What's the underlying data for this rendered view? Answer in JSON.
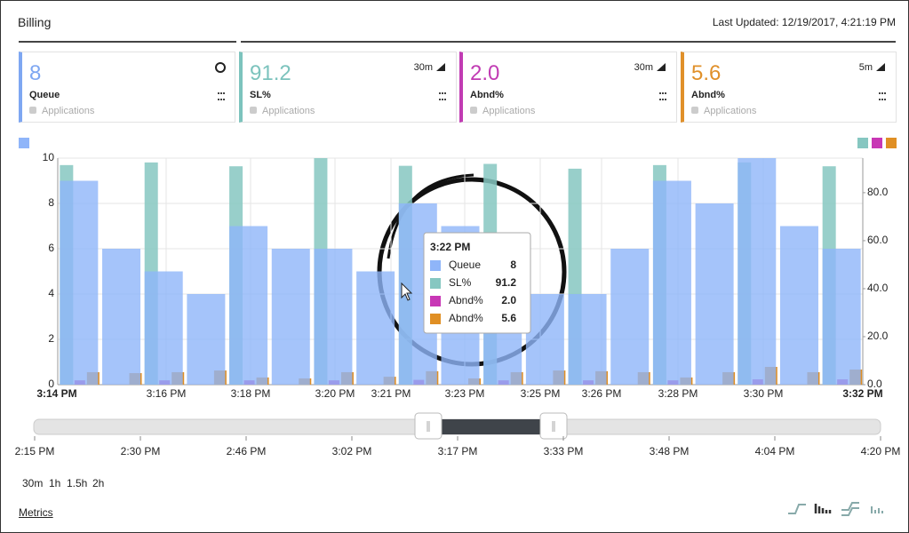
{
  "header": {
    "title": "Billing",
    "last_updated": "Last Updated: 12/19/2017, 4:21:19 PM"
  },
  "cards": [
    {
      "value": "8",
      "label": "Queue",
      "sub": "Applications",
      "period": null,
      "color": "#7ea7f2"
    },
    {
      "value": "91.2",
      "label": "SL%",
      "sub": "Applications",
      "period": "30m",
      "color": "#7cc3bd"
    },
    {
      "value": "2.0",
      "label": "Abnd%",
      "sub": "Applications",
      "period": "30m",
      "color": "#c13bb3"
    },
    {
      "value": "5.6",
      "label": "Abnd%",
      "sub": "Applications",
      "period": "5m",
      "color": "#e0902a"
    }
  ],
  "chart_data": {
    "type": "bar",
    "categories": [
      null,
      null,
      null,
      null,
      null,
      null,
      null,
      null,
      null,
      null,
      null,
      null,
      null,
      null,
      null,
      null,
      null,
      null,
      null
    ],
    "xtick_labels": [
      "3:14 PM",
      "3:16 PM",
      "3:18 PM",
      "3:20 PM",
      "3:21 PM",
      "3:23 PM",
      "3:25 PM",
      "3:26 PM",
      "3:28 PM",
      "3:30 PM",
      "3:32 PM"
    ],
    "series": [
      {
        "name": "Queue",
        "color": "#8fb5f9",
        "values": [
          9,
          6,
          5,
          4,
          7,
          6,
          6,
          5,
          8,
          7,
          6,
          4,
          4,
          6,
          9,
          8,
          10,
          7,
          6
        ]
      },
      {
        "name": "SL%",
        "color": "#86c7c1",
        "axis": "y2",
        "values": [
          91.5,
          null,
          92.6,
          null,
          91,
          null,
          94.4,
          null,
          91.2,
          null,
          92,
          null,
          90,
          null,
          91.5,
          null,
          92.6,
          null,
          91
        ]
      },
      {
        "name": "Abnd%",
        "color": "#c837b5",
        "axis": "y2",
        "values": [
          1.8,
          null,
          1.8,
          null,
          1.8,
          null,
          1.8,
          null,
          2.0,
          null,
          1.8,
          null,
          1.8,
          null,
          1.8,
          null,
          2.2,
          null,
          2.2
        ]
      },
      {
        "name": "Abnd%",
        "color": "#e08f24",
        "axis": "y2",
        "values": [
          5.2,
          4.8,
          5.2,
          5.9,
          3,
          2.6,
          5.2,
          3.3,
          5.6,
          2.6,
          5.2,
          5.9,
          5.6,
          5.2,
          3,
          5.2,
          7.4,
          5.2,
          6.3
        ]
      }
    ],
    "ylim": [
      0,
      10
    ],
    "yticks": [
      0,
      2,
      4,
      6,
      8,
      10
    ],
    "y2lim": [
      0,
      94.4
    ],
    "y2ticks": [
      {
        "value": 0,
        "label": "0.0"
      },
      {
        "value": 20,
        "label": "20.0"
      },
      {
        "value": 40,
        "label": "40.0"
      },
      {
        "value": 60,
        "label": "60.0"
      },
      {
        "value": 80,
        "label": "80.0"
      }
    ],
    "grid": true
  },
  "tooltip": {
    "title": "3:22 PM",
    "values": [
      "8",
      "91.2",
      "2.0",
      "5.6"
    ]
  },
  "timeline": [
    "2:15 PM",
    "2:30 PM",
    "2:46 PM",
    "3:02 PM",
    "3:17 PM",
    "3:33 PM",
    "3:48 PM",
    "4:04 PM",
    "4:20 PM"
  ],
  "ranges": [
    "30m",
    "1h",
    "1.5h",
    "2h"
  ],
  "footer": {
    "link": "Metrics"
  }
}
